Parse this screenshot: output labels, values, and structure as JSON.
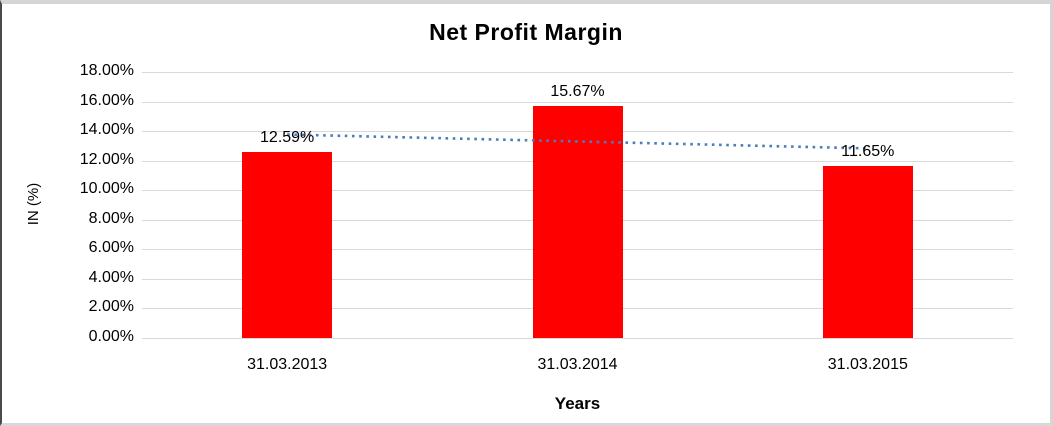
{
  "chart_data": {
    "type": "bar",
    "title": "Net Profit Margin",
    "xlabel": "Years",
    "ylabel": "IN (%)",
    "categories": [
      "31.03.2013",
      "31.03.2014",
      "31.03.2015"
    ],
    "values": [
      12.59,
      15.67,
      11.65
    ],
    "data_labels": [
      "12.59%",
      "15.67%",
      "11.65%"
    ],
    "ylim": [
      0,
      18
    ],
    "y_tick_step": 2,
    "y_tick_labels": [
      "0.00%",
      "2.00%",
      "4.00%",
      "6.00%",
      "8.00%",
      "10.00%",
      "12.00%",
      "14.00%",
      "16.00%",
      "18.00%"
    ],
    "grid": "horizontal",
    "legend": "none",
    "bar_color": "#ff0000",
    "gridline_color": "#d9d9d9",
    "text_color": "#000000",
    "trendline": {
      "type": "linear",
      "style": "dotted",
      "color": "#4a7ebb",
      "endpoints_pct": [
        13.77,
        12.83
      ]
    }
  }
}
